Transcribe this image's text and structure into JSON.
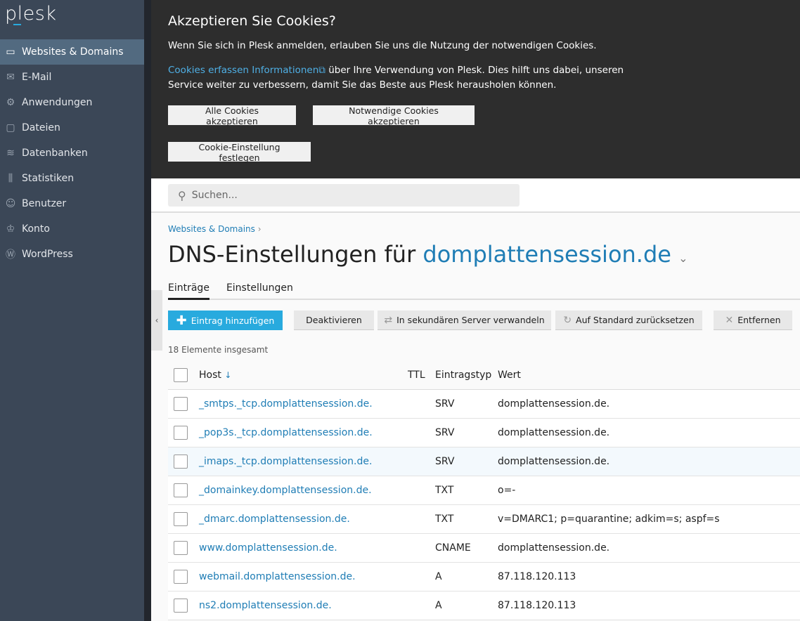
{
  "sidebar": {
    "logo": "plesk",
    "items": [
      {
        "label": "Websites & Domains",
        "icon": "monitor-icon",
        "glyph": "▭",
        "active": true
      },
      {
        "label": "E-Mail",
        "icon": "mail-icon",
        "glyph": "✉"
      },
      {
        "label": "Anwendungen",
        "icon": "gear-icon",
        "glyph": "⚙"
      },
      {
        "label": "Dateien",
        "icon": "folder-icon",
        "glyph": "▢"
      },
      {
        "label": "Datenbanken",
        "icon": "layers-icon",
        "glyph": "≋"
      },
      {
        "label": "Statistiken",
        "icon": "bar-chart-icon",
        "glyph": "⫼"
      },
      {
        "label": "Benutzer",
        "icon": "user-icon",
        "glyph": "☺"
      },
      {
        "label": "Konto",
        "icon": "crown-icon",
        "glyph": "♔"
      },
      {
        "label": "WordPress",
        "icon": "wordpress-icon",
        "glyph": "Ⓦ"
      }
    ]
  },
  "cookie": {
    "title": "Akzeptieren Sie Cookies?",
    "text1": "Wenn Sie sich in Plesk anmelden, erlauben Sie uns die Nutzung der notwendigen Cookies.",
    "link": "Cookies erfassen Informationen",
    "text2": " über Ihre Verwendung von Plesk. Dies hilft uns dabei, unseren Service weiter zu verbessern, damit Sie das Beste aus Plesk herausholen können.",
    "accept_all": "Alle Cookies akzeptieren",
    "accept_necessary": "Notwendige Cookies akzeptieren",
    "settings": "Cookie-Einstellung festlegen"
  },
  "search": {
    "placeholder": "Suchen..."
  },
  "breadcrumb": "Websites & Domains",
  "title": {
    "prefix": "DNS-Einstellungen für ",
    "domain": "domplattensession.de"
  },
  "tabs": [
    "Einträge",
    "Einstellungen"
  ],
  "toolbar": {
    "add": "Eintrag hinzufügen",
    "deactivate": "Deaktivieren",
    "secondary": "In sekundären Server verwandeln",
    "reset": "Auf Standard zurücksetzen",
    "remove": "Entfernen"
  },
  "count": "18 Elemente insgesamt",
  "columns": {
    "host": "Host",
    "ttl": "TTL",
    "type": "Eintragstyp",
    "value": "Wert"
  },
  "rows": [
    {
      "host": "_smtps._tcp.domplattensession.de.",
      "ttl": "",
      "type": "SRV",
      "value": "domplattensession.de."
    },
    {
      "host": "_pop3s._tcp.domplattensession.de.",
      "ttl": "",
      "type": "SRV",
      "value": "domplattensession.de."
    },
    {
      "host": "_imaps._tcp.domplattensession.de.",
      "ttl": "",
      "type": "SRV",
      "value": "domplattensession.de."
    },
    {
      "host": "_domainkey.domplattensession.de.",
      "ttl": "",
      "type": "TXT",
      "value": "o=-"
    },
    {
      "host": "_dmarc.domplattensession.de.",
      "ttl": "",
      "type": "TXT",
      "value": "v=DMARC1; p=quarantine; adkim=s; aspf=s"
    },
    {
      "host": "www.domplattensession.de.",
      "ttl": "",
      "type": "CNAME",
      "value": "domplattensession.de."
    },
    {
      "host": "webmail.domplattensession.de.",
      "ttl": "",
      "type": "A",
      "value": "87.118.120.113"
    },
    {
      "host": "ns2.domplattensession.de.",
      "ttl": "",
      "type": "A",
      "value": "87.118.120.113"
    }
  ]
}
